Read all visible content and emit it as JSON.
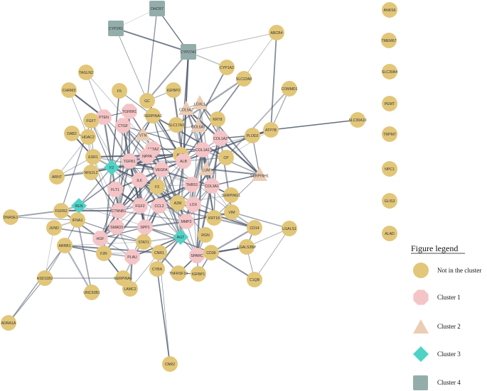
{
  "colors": {
    "not_in_cluster": "#e2c679",
    "cluster1": "#f4c4c6",
    "cluster2": "#ebcdb4",
    "cluster3": "#4fd3c6",
    "cluster4": "#93adab",
    "edge": "#4a5568"
  },
  "legend": {
    "title": "Figure legend",
    "items": [
      {
        "id": "none",
        "label": "Not in the cluster",
        "shape": "circle"
      },
      {
        "id": "cluster1",
        "label": "Cluster 1",
        "shape": "octagon"
      },
      {
        "id": "cluster2",
        "label": "Cluster 2",
        "shape": "triangle"
      },
      {
        "id": "cluster3",
        "label": "Cluster 3",
        "shape": "diamond"
      },
      {
        "id": "cluster4",
        "label": "Cluster 4",
        "shape": "square"
      }
    ]
  },
  "nodes": [
    {
      "id": "DHCR7",
      "group": "cluster4"
    },
    {
      "id": "CYP2R1",
      "group": "cluster4"
    },
    {
      "id": "CYP27A1",
      "group": "cluster4"
    },
    {
      "id": "ABCB4",
      "group": "none"
    },
    {
      "id": "CYP1A2",
      "group": "none"
    },
    {
      "id": "SLC22A8",
      "group": "none"
    },
    {
      "id": "COMMD1",
      "group": "none"
    },
    {
      "id": "TAGLN2",
      "group": "none"
    },
    {
      "id": "CHRM3",
      "group": "none"
    },
    {
      "id": "F5",
      "group": "none"
    },
    {
      "id": "IGFBP2",
      "group": "none"
    },
    {
      "id": "GC",
      "group": "none"
    },
    {
      "id": "LOXL1",
      "group": "cluster2"
    },
    {
      "id": "COL5A2",
      "group": "cluster2"
    },
    {
      "id": "SERPINA1",
      "group": "none"
    },
    {
      "id": "TGFBR1",
      "group": "cluster1"
    },
    {
      "id": "PTEN",
      "group": "cluster1"
    },
    {
      "id": "DAB2",
      "group": "none"
    },
    {
      "id": "HDAC2",
      "group": "none"
    },
    {
      "id": "FGF7",
      "group": "none"
    },
    {
      "id": "CTGF",
      "group": "cluster1"
    },
    {
      "id": "VTN",
      "group": "cluster2"
    },
    {
      "id": "SLC17A2",
      "group": "none"
    },
    {
      "id": "COL6A1",
      "group": "cluster2"
    },
    {
      "id": "KRT8",
      "group": "none"
    },
    {
      "id": "COL1A2",
      "group": "cluster1"
    },
    {
      "id": "PLOD2",
      "group": "none"
    },
    {
      "id": "ATP7B",
      "group": "none"
    },
    {
      "id": "SLC30A10",
      "group": "none"
    },
    {
      "id": "ACTA2",
      "group": "cluster1"
    },
    {
      "id": "NPPA",
      "group": "cluster1"
    },
    {
      "id": "AHR",
      "group": "none"
    },
    {
      "id": "COL1A1",
      "group": "cluster1"
    },
    {
      "id": "CP",
      "group": "none"
    },
    {
      "id": "ESR1",
      "group": "none"
    },
    {
      "id": "NFE2L2",
      "group": "none"
    },
    {
      "id": "F2",
      "group": "cluster3"
    },
    {
      "id": "TGFB1",
      "group": "cluster1"
    },
    {
      "id": "ALB",
      "group": "cluster1"
    },
    {
      "id": "LUM",
      "group": "cluster2"
    },
    {
      "id": "SERPINH1",
      "group": "cluster2"
    },
    {
      "id": "ARNT",
      "group": "none"
    },
    {
      "id": "FLT1",
      "group": "cluster1"
    },
    {
      "id": "IL6",
      "group": "cluster1"
    },
    {
      "id": "VEGFA",
      "group": "cluster1"
    },
    {
      "id": "THBS1",
      "group": "cluster1"
    },
    {
      "id": "COL3A1",
      "group": "cluster1"
    },
    {
      "id": "SERPING1",
      "group": "none"
    },
    {
      "id": "F3",
      "group": "none"
    },
    {
      "id": "REN",
      "group": "cluster3"
    },
    {
      "id": "FGFR2",
      "group": "none"
    },
    {
      "id": "CTNNB1",
      "group": "cluster1"
    },
    {
      "id": "FGF2",
      "group": "cluster1"
    },
    {
      "id": "CCL2",
      "group": "cluster1"
    },
    {
      "id": "A2M",
      "group": "none"
    },
    {
      "id": "LOX",
      "group": "cluster1"
    },
    {
      "id": "VIM",
      "group": "none"
    },
    {
      "id": "DNASE1",
      "group": "none"
    },
    {
      "id": "IFNA1",
      "group": "none"
    },
    {
      "id": "SMAD3",
      "group": "cluster1"
    },
    {
      "id": "SPP1",
      "group": "cluster1"
    },
    {
      "id": "MMP2",
      "group": "cluster1"
    },
    {
      "id": "KRT18",
      "group": "none"
    },
    {
      "id": "CD14",
      "group": "none"
    },
    {
      "id": "LGALS1",
      "group": "none"
    },
    {
      "id": "JUND",
      "group": "none"
    },
    {
      "id": "HGF",
      "group": "cluster1"
    },
    {
      "id": "AGT",
      "group": "cluster3"
    },
    {
      "id": "RGN",
      "group": "none"
    },
    {
      "id": "STAT1",
      "group": "none"
    },
    {
      "id": "ARRB1",
      "group": "none"
    },
    {
      "id": "F2R",
      "group": "none"
    },
    {
      "id": "PLAU",
      "group": "cluster1"
    },
    {
      "id": "SPARC",
      "group": "cluster1"
    },
    {
      "id": "CD36",
      "group": "none"
    },
    {
      "id": "LGALS3BP",
      "group": "none"
    },
    {
      "id": "IGFBP1",
      "group": "none"
    },
    {
      "id": "C1QB",
      "group": "none"
    },
    {
      "id": "HSD11B2",
      "group": "none"
    },
    {
      "id": "SERPINA6",
      "group": "none"
    },
    {
      "id": "CNR1",
      "group": "none"
    },
    {
      "id": "TNFRSF10",
      "group": "none"
    },
    {
      "id": "CYBA",
      "group": "none"
    },
    {
      "id": "UNC93B1",
      "group": "none"
    },
    {
      "id": "LAMC2",
      "group": "none"
    },
    {
      "id": "ADRA1A",
      "group": "none"
    },
    {
      "id": "CNR2",
      "group": "none"
    },
    {
      "id": "ANKS6",
      "group": "none"
    },
    {
      "id": "TMEM67",
      "group": "none"
    },
    {
      "id": "SLC30A4",
      "group": "none"
    },
    {
      "id": "PEMT",
      "group": "none"
    },
    {
      "id": "TRPM7",
      "group": "none"
    },
    {
      "id": "NPC1",
      "group": "none"
    },
    {
      "id": "GLIS3",
      "group": "none"
    },
    {
      "id": "ALAD",
      "group": "none"
    }
  ],
  "edges": [
    [
      "DHCR7",
      "CYP2R1"
    ],
    [
      "DHCR7",
      "CYP27A1"
    ],
    [
      "CYP2R1",
      "CYP27A1"
    ],
    [
      "CYP2R1",
      "GC"
    ],
    [
      "DHCR7",
      "GC"
    ],
    [
      "CYP27A1",
      "GC"
    ],
    [
      "CYP27A1",
      "ABCB4"
    ],
    [
      "CYP27A1",
      "CYP1A2"
    ],
    [
      "CYP27A1",
      "ALB"
    ],
    [
      "CYP27A1",
      "AHR"
    ],
    [
      "ABCB4",
      "ATP7B"
    ],
    [
      "ABCB4",
      "ALB"
    ],
    [
      "COMMD1",
      "ATP7B"
    ],
    [
      "COMMD1",
      "CP"
    ],
    [
      "ATP7B",
      "CP"
    ],
    [
      "ATP7B",
      "SLC30A10"
    ],
    [
      "ATP7B",
      "ALB"
    ],
    [
      "CYP1A2",
      "AHR"
    ],
    [
      "SLC22A8",
      "ALB"
    ],
    [
      "SLC22A8",
      "SLC17A2"
    ],
    [
      "LOXL1",
      "COL1A1"
    ],
    [
      "LOXL1",
      "COL3A1"
    ],
    [
      "LOXL1",
      "LOX"
    ],
    [
      "LOXL1",
      "COL1A2"
    ],
    [
      "LOXL1",
      "SERPINH1"
    ],
    [
      "LOXL1",
      "COL5A2"
    ],
    [
      "COL5A2",
      "COL1A1"
    ],
    [
      "COL5A2",
      "COL3A1"
    ],
    [
      "COL5A2",
      "COL1A2"
    ],
    [
      "COL5A2",
      "COL6A1"
    ],
    [
      "COL5A2",
      "SERPINH1"
    ],
    [
      "COL6A1",
      "COL1A1"
    ],
    [
      "COL6A1",
      "COL3A1"
    ],
    [
      "COL6A1",
      "LUM"
    ],
    [
      "COL6A1",
      "VTN"
    ],
    [
      "SERPINH1",
      "COL1A1"
    ],
    [
      "SERPINH1",
      "COL1A2"
    ],
    [
      "SERPINH1",
      "COL3A1"
    ],
    [
      "SERPINH1",
      "LUM"
    ],
    [
      "SERPINH1",
      "KRT18"
    ],
    [
      "LUM",
      "COL1A1"
    ],
    [
      "LUM",
      "COL3A1"
    ],
    [
      "LUM",
      "COL1A2"
    ],
    [
      "VTN",
      "SERPINA1"
    ],
    [
      "VTN",
      "ALB"
    ],
    [
      "VTN",
      "TGFB1"
    ],
    [
      "TGFBR1",
      "TGFB1"
    ],
    [
      "TGFBR1",
      "SMAD3"
    ],
    [
      "TGFBR1",
      "CTGF"
    ],
    [
      "TGFBR1",
      "CTNNB1"
    ],
    [
      "TGFBR1",
      "PTEN"
    ],
    [
      "TGFBR1",
      "ACTA2"
    ],
    [
      "PTEN",
      "CTNNB1"
    ],
    [
      "PTEN",
      "VEGFA"
    ],
    [
      "PTEN",
      "IL6"
    ],
    [
      "PTEN",
      "HDAC2"
    ],
    [
      "PTEN",
      "TGFB1"
    ],
    [
      "CTGF",
      "TGFB1"
    ],
    [
      "CTGF",
      "ACTA2"
    ],
    [
      "CTGF",
      "COL1A1"
    ],
    [
      "CTGF",
      "VEGFA"
    ],
    [
      "CTGF",
      "FGF2"
    ],
    [
      "CTGF",
      "SMAD3"
    ],
    [
      "CTGF",
      "SPARC"
    ],
    [
      "ACTA2",
      "TGFB1"
    ],
    [
      "ACTA2",
      "COL1A1"
    ],
    [
      "ACTA2",
      "VIM"
    ],
    [
      "ACTA2",
      "MMP2"
    ],
    [
      "ACTA2",
      "VEGFA"
    ],
    [
      "ACTA2",
      "IL6"
    ],
    [
      "NPPA",
      "VEGFA"
    ],
    [
      "NPPA",
      "IL6"
    ],
    [
      "NPPA",
      "AGT"
    ],
    [
      "NPPA",
      "REN"
    ],
    [
      "NPPA",
      "TGFB1"
    ],
    [
      "TGFB1",
      "SMAD3"
    ],
    [
      "TGFB1",
      "IL6"
    ],
    [
      "TGFB1",
      "VEGFA"
    ],
    [
      "TGFB1",
      "COL1A1"
    ],
    [
      "TGFB1",
      "COL3A1"
    ],
    [
      "TGFB1",
      "MMP2"
    ],
    [
      "TGFB1",
      "CTNNB1"
    ],
    [
      "TGFB1",
      "FGF2"
    ],
    [
      "TGFB1",
      "THBS1"
    ],
    [
      "TGFB1",
      "ALB"
    ],
    [
      "TGFB1",
      "SPP1"
    ],
    [
      "TGFB1",
      "HGF"
    ],
    [
      "TGFB1",
      "CCL2"
    ],
    [
      "IL6",
      "VEGFA"
    ],
    [
      "IL6",
      "ALB"
    ],
    [
      "IL6",
      "CCL2"
    ],
    [
      "IL6",
      "STAT1"
    ],
    [
      "IL6",
      "FGF2"
    ],
    [
      "IL6",
      "HGF"
    ],
    [
      "IL6",
      "CTNNB1"
    ],
    [
      "IL6",
      "MMP2"
    ],
    [
      "IL6",
      "SPP1"
    ],
    [
      "IL6",
      "F3"
    ],
    [
      "IL6",
      "ESR1"
    ],
    [
      "IL6",
      "FLT1"
    ],
    [
      "IL6",
      "A2M"
    ],
    [
      "VEGFA",
      "FLT1"
    ],
    [
      "VEGFA",
      "FGF2"
    ],
    [
      "VEGFA",
      "HGF"
    ],
    [
      "VEGFA",
      "MMP2"
    ],
    [
      "VEGFA",
      "THBS1"
    ],
    [
      "VEGFA",
      "CTNNB1"
    ],
    [
      "VEGFA",
      "ALB"
    ],
    [
      "VEGFA",
      "F3"
    ],
    [
      "VEGFA",
      "AGT"
    ],
    [
      "VEGFA",
      "SPP1"
    ],
    [
      "VEGFA",
      "CCL2"
    ],
    [
      "VEGFA",
      "ESR1"
    ],
    [
      "VEGFA",
      "F2"
    ],
    [
      "ALB",
      "F2"
    ],
    [
      "ALB",
      "A2M"
    ],
    [
      "ALB",
      "CP"
    ],
    [
      "ALB",
      "SERPINA1"
    ],
    [
      "ALB",
      "AGT"
    ],
    [
      "ALB",
      "VTN"
    ],
    [
      "ALB",
      "GC"
    ],
    [
      "ALB",
      "F3"
    ],
    [
      "ALB",
      "COL1A1"
    ],
    [
      "ALB",
      "AHR"
    ],
    [
      "ALB",
      "IGFBP2"
    ],
    [
      "ALB",
      "SPP1"
    ],
    [
      "ALB",
      "APOH_LINK_SKIP"
    ],
    [
      "COL1A1",
      "COL1A2"
    ],
    [
      "COL1A1",
      "COL3A1"
    ],
    [
      "COL1A1",
      "MMP2"
    ],
    [
      "COL1A1",
      "SPARC"
    ],
    [
      "COL1A1",
      "LOX"
    ],
    [
      "COL1A1",
      "THBS1"
    ],
    [
      "COL1A1",
      "SERPINH1"
    ],
    [
      "COL1A1",
      "PLOD2"
    ],
    [
      "COL1A1",
      "KRT18"
    ],
    [
      "COL1A2",
      "COL3A1"
    ],
    [
      "COL1A2",
      "PLOD2"
    ],
    [
      "COL1A2",
      "SPARC"
    ],
    [
      "COL3A1",
      "MMP2"
    ],
    [
      "COL3A1",
      "LOX"
    ],
    [
      "COL3A1",
      "SPARC"
    ],
    [
      "COL3A1",
      "THBS1"
    ],
    [
      "COL3A1",
      "SERPING1"
    ],
    [
      "COL3A1",
      "VIM"
    ],
    [
      "THBS1",
      "MMP2"
    ],
    [
      "THBS1",
      "CCL2"
    ],
    [
      "THBS1",
      "F3"
    ],
    [
      "THBS1",
      "SPARC"
    ],
    [
      "THBS1",
      "FGF2"
    ],
    [
      "LOX",
      "MMP2"
    ],
    [
      "LOX",
      "COL1A2"
    ],
    [
      "MMP2",
      "SPP1"
    ],
    [
      "MMP2",
      "SPARC"
    ],
    [
      "MMP2",
      "CTNNB1"
    ],
    [
      "MMP2",
      "CCL2"
    ],
    [
      "MMP2",
      "TIMP_SKIP"
    ],
    [
      "CCL2",
      "SPP1"
    ],
    [
      "CCL2",
      "STAT1"
    ],
    [
      "CCL2",
      "F3"
    ],
    [
      "CCL2",
      "AGT"
    ],
    [
      "CCL2",
      "CD14"
    ],
    [
      "FGF2",
      "HGF"
    ],
    [
      "FGF2",
      "FGFR2"
    ],
    [
      "FGF2",
      "FLT1"
    ],
    [
      "FGF2",
      "CTNNB1"
    ],
    [
      "FGF2",
      "SPP1"
    ],
    [
      "FGF2",
      "FGF7"
    ],
    [
      "CTNNB1",
      "SMAD3"
    ],
    [
      "CTNNB1",
      "HGF"
    ],
    [
      "CTNNB1",
      "ESR1"
    ],
    [
      "CTNNB1",
      "NFE2L2"
    ],
    [
      "CTNNB1",
      "FGFR2"
    ],
    [
      "CTNNB1",
      "FLT1"
    ],
    [
      "SMAD3",
      "HGF"
    ],
    [
      "SMAD3",
      "SPP1"
    ],
    [
      "SMAD3",
      "ESR1"
    ],
    [
      "SMAD3",
      "PLAU"
    ],
    [
      "HGF",
      "PLAU"
    ],
    [
      "HGF",
      "SPP1"
    ],
    [
      "HGF",
      "FGFR2"
    ],
    [
      "HGF",
      "F2R"
    ],
    [
      "PLAU",
      "SPP1"
    ],
    [
      "PLAU",
      "SERPINA6_SKIP"
    ],
    [
      "PLAU",
      "F2R"
    ],
    [
      "PLAU",
      "STAT1"
    ],
    [
      "PLAU",
      "AGT"
    ],
    [
      "SPP1",
      "STAT1"
    ],
    [
      "SPP1",
      "AGT"
    ],
    [
      "SPP1",
      "CD36"
    ],
    [
      "AGT",
      "REN"
    ],
    [
      "AGT",
      "F2"
    ],
    [
      "AGT",
      "STAT1"
    ],
    [
      "AGT",
      "SPARC"
    ],
    [
      "AGT",
      "CNR1"
    ],
    [
      "AGT",
      "CYBA"
    ],
    [
      "AGT",
      "A2M"
    ],
    [
      "REN",
      "F2"
    ],
    [
      "REN",
      "FGFR2"
    ],
    [
      "REN",
      "IFNA1"
    ],
    [
      "F2",
      "F3"
    ],
    [
      "F2",
      "F5"
    ],
    [
      "F2",
      "SERPINA1"
    ],
    [
      "F2",
      "F2R"
    ],
    [
      "F2",
      "A2M"
    ],
    [
      "F2",
      "ESR1"
    ],
    [
      "F2",
      "NFE2L2"
    ],
    [
      "F2",
      "FGF7"
    ],
    [
      "F3",
      "A2M"
    ],
    [
      "F3",
      "F2R"
    ],
    [
      "F3",
      "CD14"
    ],
    [
      "ESR1",
      "NFE2L2"
    ],
    [
      "ESR1",
      "HDAC2"
    ],
    [
      "ESR1",
      "ARNT"
    ],
    [
      "ESR1",
      "AHR"
    ],
    [
      "ESR1",
      "FGF7"
    ],
    [
      "NFE2L2",
      "ARNT"
    ],
    [
      "NFE2L2",
      "AHR"
    ],
    [
      "NFE2L2",
      "HDAC2"
    ],
    [
      "AHR",
      "ARNT"
    ],
    [
      "AHR",
      "CYP1A2"
    ],
    [
      "AHR",
      "NFE2L2"
    ],
    [
      "HDAC2",
      "DAB2"
    ],
    [
      "HDAC2",
      "CHRM3"
    ],
    [
      "FGF7",
      "FGFR2"
    ],
    [
      "FGFR2",
      "DNASE1"
    ],
    [
      "TAGLN2",
      "ACTA2"
    ],
    [
      "TAGLN2",
      "PTEN"
    ],
    [
      "CHRM3",
      "PTEN"
    ],
    [
      "F5",
      "SERPINA1"
    ],
    [
      "F5",
      "F2"
    ],
    [
      "IGFBP2",
      "ALB"
    ],
    [
      "IGFBP2",
      "GC"
    ],
    [
      "GC",
      "SERPINA1"
    ],
    [
      "GC",
      "ALB"
    ],
    [
      "SERPINA1",
      "A2M"
    ],
    [
      "SERPINA1",
      "CP"
    ],
    [
      "SLC17A2",
      "ALB"
    ],
    [
      "KRT8",
      "KRT18"
    ],
    [
      "KRT8",
      "VIM"
    ],
    [
      "KRT18",
      "VIM"
    ],
    [
      "PLOD2",
      "COL1A2"
    ],
    [
      "PLOD2",
      "ATP7B"
    ],
    [
      "PLOD2",
      "SERPINH1"
    ],
    [
      "CP",
      "A2M"
    ],
    [
      "SERPING1",
      "A2M"
    ],
    [
      "SERPING1",
      "COL3A1"
    ],
    [
      "VIM",
      "CD14"
    ],
    [
      "VIM",
      "LGALS1"
    ],
    [
      "VIM",
      "MMP2"
    ],
    [
      "A2M",
      "CD14"
    ],
    [
      "A2M",
      "RGN"
    ],
    [
      "CD14",
      "LGALS3BP"
    ],
    [
      "CD14",
      "CD36"
    ],
    [
      "LGALS1",
      "LGALS3BP"
    ],
    [
      "LGALS1",
      "VIM"
    ],
    [
      "LGALS3BP",
      "C1QB"
    ],
    [
      "LGALS3BP",
      "CD36"
    ],
    [
      "C1QB",
      "CD36"
    ],
    [
      "C1QB",
      "LGALS1"
    ],
    [
      "RGN",
      "SPARC"
    ],
    [
      "SPARC",
      "IGFBP1"
    ],
    [
      "SPARC",
      "CD36"
    ],
    [
      "SPARC",
      "TNFRSF10"
    ],
    [
      "SPARC",
      "LGALS3BP"
    ],
    [
      "STAT1",
      "IFNA1"
    ],
    [
      "STAT1",
      "JUND"
    ],
    [
      "STAT1",
      "ARRB1"
    ],
    [
      "STAT1",
      "CNR1"
    ],
    [
      "IFNA1",
      "JUND"
    ],
    [
      "IFNA1",
      "ARRB1"
    ],
    [
      "ARRB1",
      "F2R"
    ],
    [
      "ARRB1",
      "CNR1"
    ],
    [
      "ARRB1",
      "HSD11B2"
    ],
    [
      "ARRB1",
      "ADRA1A"
    ],
    [
      "ARRB1",
      "UNC93B1"
    ],
    [
      "F2R",
      "CNR1"
    ],
    [
      "F2R",
      "SERPINA6"
    ],
    [
      "CNR1",
      "CNR2"
    ],
    [
      "CNR1",
      "CYBA"
    ],
    [
      "CNR1",
      "TNFRSF10"
    ],
    [
      "CNR1",
      "LAMC2"
    ],
    [
      "SERPINA6",
      "HSD11B2"
    ],
    [
      "SERPINA6",
      "ALB"
    ],
    [
      "TNFRSF10",
      "IGFBP1"
    ],
    [
      "CYBA",
      "CNR2"
    ],
    [
      "LAMC2",
      "PLAU"
    ],
    [
      "HSD11B2",
      "ADRA1A"
    ],
    [
      "UNC93B1",
      "IFNA1"
    ],
    [
      "JUND",
      "HSD11B2"
    ],
    [
      "ARNT",
      "HDAC2"
    ],
    [
      "DAB2",
      "ESR1"
    ],
    [
      "DNASE1",
      "IFNA1"
    ],
    [
      "IGFBP1",
      "CD36"
    ]
  ]
}
